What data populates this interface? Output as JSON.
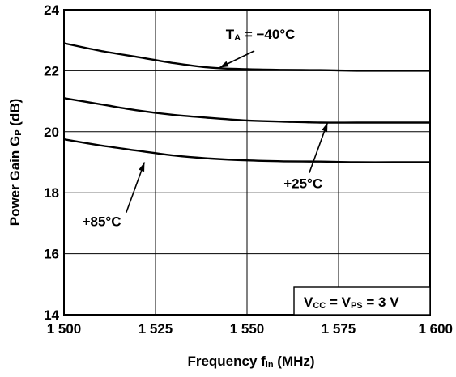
{
  "chart_data": {
    "type": "line",
    "xlabel": "Frequency  fin (MHz)",
    "xlabel_parts": {
      "main": "Frequency  f",
      "sub": "in",
      "unit": " (MHz)"
    },
    "ylabel": "Power Gain  GP (dB)",
    "ylabel_parts": {
      "main": "Power Gain  G",
      "sub": "P",
      "unit": " (dB)"
    },
    "xlim": [
      1500,
      1600
    ],
    "ylim": [
      14,
      24
    ],
    "x_ticks": [
      1500,
      1525,
      1550,
      1575,
      1600
    ],
    "x_tick_labels": [
      "1 500",
      "1 525",
      "1 550",
      "1 575",
      "1 600"
    ],
    "y_ticks": [
      14,
      16,
      18,
      20,
      22,
      24
    ],
    "y_tick_labels": [
      "14",
      "16",
      "18",
      "20",
      "22",
      "24"
    ],
    "grid": true,
    "series": [
      {
        "name": "TA = −40°C",
        "x": [
          1500,
          1510,
          1520,
          1530,
          1540,
          1550,
          1560,
          1570,
          1580,
          1590,
          1600
        ],
        "values": [
          22.9,
          22.65,
          22.45,
          22.25,
          22.1,
          22.05,
          22.03,
          22.02,
          22.0,
          22.0,
          22.0
        ]
      },
      {
        "name": "+25°C",
        "x": [
          1500,
          1510,
          1520,
          1530,
          1540,
          1550,
          1560,
          1570,
          1580,
          1590,
          1600
        ],
        "values": [
          21.1,
          20.9,
          20.7,
          20.55,
          20.45,
          20.37,
          20.33,
          20.3,
          20.3,
          20.3,
          20.3
        ]
      },
      {
        "name": "+85°C",
        "x": [
          1500,
          1510,
          1520,
          1530,
          1540,
          1550,
          1560,
          1570,
          1580,
          1590,
          1600
        ],
        "values": [
          19.75,
          19.55,
          19.38,
          19.22,
          19.12,
          19.06,
          19.03,
          19.02,
          19.0,
          19.0,
          19.0
        ]
      }
    ],
    "annotations": [
      {
        "label_main": "T",
        "label_sub": "A",
        "label_rest": " = −40°C",
        "text_x": 1544.2,
        "text_y": 23.05,
        "arrow_from": [
          1552,
          22.65
        ],
        "arrow_to": [
          1542.5,
          22.1
        ]
      },
      {
        "label_main": "+25°C",
        "label_sub": "",
        "label_rest": "",
        "text_x": 1560,
        "text_y": 18.15,
        "arrow_from": [
          1567,
          18.65
        ],
        "arrow_to": [
          1572,
          20.3
        ]
      },
      {
        "label_main": "+85°C",
        "label_sub": "",
        "label_rest": "",
        "text_x": 1505,
        "text_y": 16.9,
        "arrow_from": [
          1517,
          17.35
        ],
        "arrow_to": [
          1522,
          19.0
        ]
      }
    ],
    "conditions_box": {
      "main1": "V",
      "sub1": "CC",
      "mid": " = V",
      "sub2": "PS",
      "rest": " = 3 V"
    }
  }
}
